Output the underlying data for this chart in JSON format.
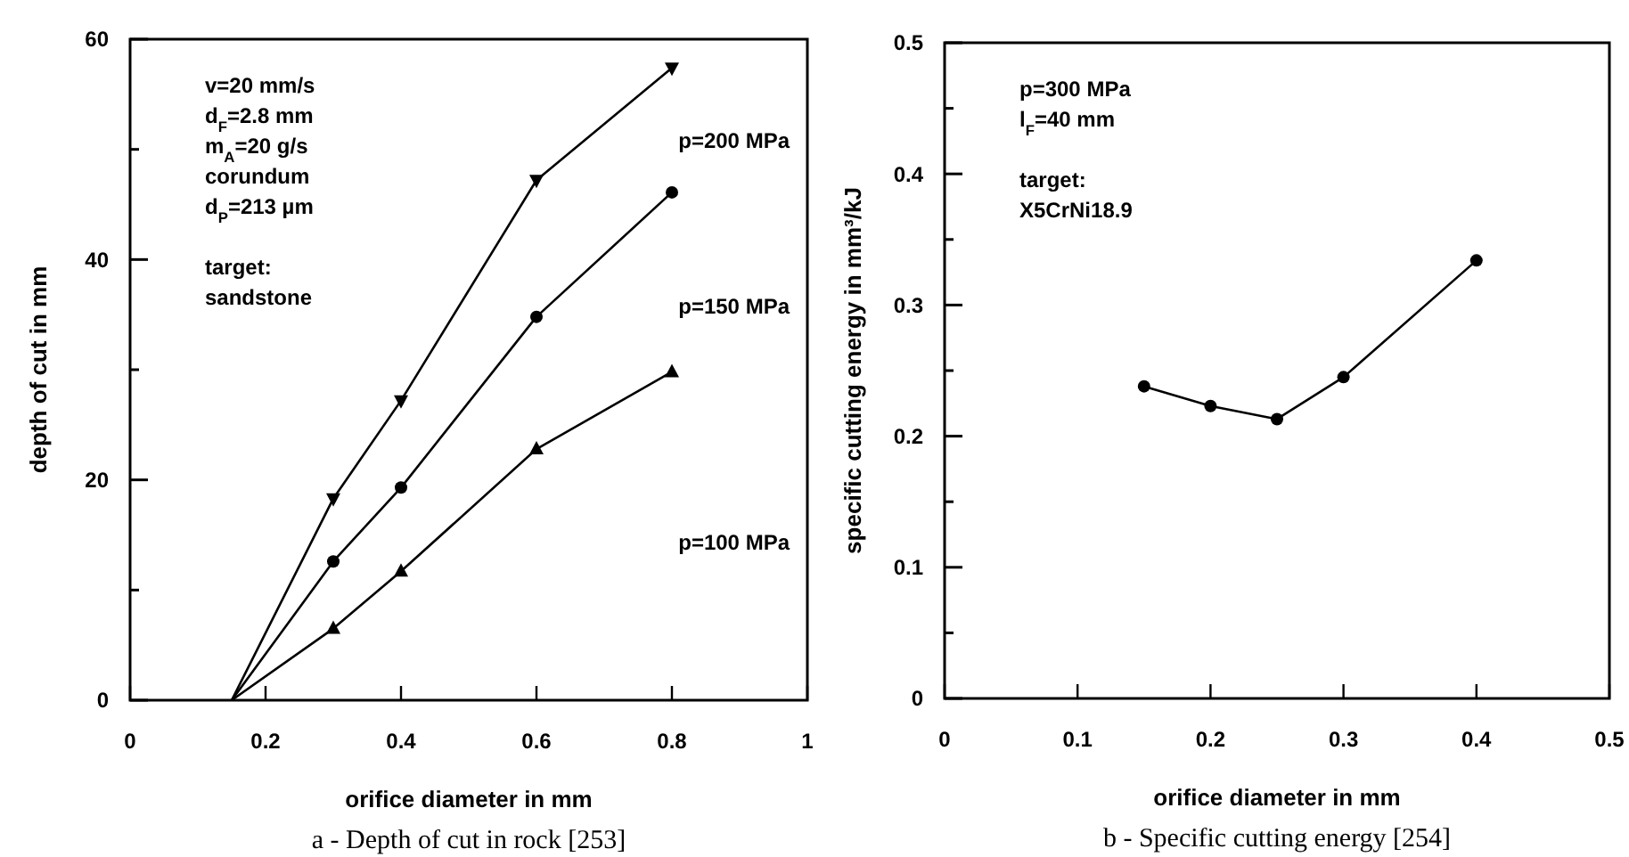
{
  "chart_data": [
    {
      "type": "line",
      "title": "a - Depth of cut in rock [253]",
      "xlabel": "orifice diameter in mm",
      "ylabel": "depth of cut in mm",
      "xlim": [
        0,
        1
      ],
      "xticks": [
        0,
        0.2,
        0.4,
        0.6,
        0.8,
        1
      ],
      "ylim": [
        0,
        60
      ],
      "yticks": [
        0,
        {
          "value": 10,
          "label": null
        },
        20,
        {
          "value": 30,
          "label": null
        },
        40,
        {
          "value": 50,
          "label": null
        },
        60
      ],
      "line_style": "solid",
      "grid": false,
      "annotations": [
        "v=20 mm/s",
        "d$_{F}$=2.8 mm",
        "m$_{A}$=20 g/s",
        "corundum",
        "d$_{P}$=213 µm",
        "target:",
        "sandstone"
      ],
      "series": [
        {
          "name": "p=200 MPa",
          "color": "#000000",
          "marker": "triangle",
          "x": [
            0.15,
            0.3,
            0.4,
            0.6,
            0.8
          ],
          "values": [
            0,
            18.3,
            27.2,
            47.2,
            57.4
          ]
        },
        {
          "name": "p=150 MPa",
          "color": "#000000",
          "marker": "circle",
          "x": [
            0.15,
            0.3,
            0.4,
            0.6,
            0.8
          ],
          "values": [
            0,
            12.6,
            19.3,
            34.8,
            46.1
          ]
        },
        {
          "name": "p=100 MPa",
          "color": "#000000",
          "marker": "triangle",
          "x": [
            0.15,
            0.3,
            0.4,
            0.6,
            0.8
          ],
          "values": [
            0,
            6.5,
            11.7,
            22.8,
            29.8
          ]
        }
      ]
    },
    {
      "type": "line",
      "title": "b - Specific cutting energy [254]",
      "xlabel": "orifice diameter in mm",
      "ylabel": "specific cutting energy in mm³/kJ",
      "xlim": [
        0,
        0.5
      ],
      "xticks": [
        0,
        0.1,
        0.2,
        0.3,
        0.4,
        0.5
      ],
      "ylim": [
        0,
        0.5
      ],
      "yticks": [
        0,
        {
          "value": 0.05,
          "label": null
        },
        0.1,
        {
          "value": 0.15,
          "label": null
        },
        0.2,
        {
          "value": 0.25,
          "label": null
        },
        0.3,
        {
          "value": 0.35,
          "label": null
        },
        0.4,
        {
          "value": 0.45,
          "label": null
        },
        0.5
      ],
      "line_style": "solid",
      "grid": false,
      "annotations": [
        "p=300 MPa",
        "l$_{F}$=40 mm",
        "target:",
        "X5CrNi18.9"
      ],
      "series": [
        {
          "color": "#000000",
          "marker": "circle",
          "x": [
            0.15,
            0.2,
            0.25,
            0.3,
            0.4
          ],
          "values": [
            0.238,
            0.223,
            0.213,
            0.245,
            0.334
          ]
        }
      ]
    }
  ]
}
